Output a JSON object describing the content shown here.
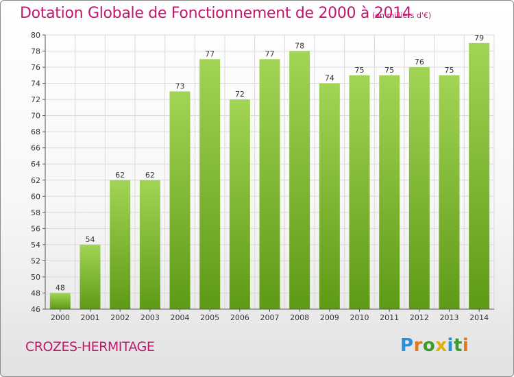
{
  "header": {
    "title": "Dotation Globale de Fonctionnement de 2000 à 2014",
    "unit": "(en milliers d'€)"
  },
  "footer": {
    "commune": "CROZES-HERMITAGE",
    "logo_text": "Proxiti",
    "logo_colors": [
      "#2a8fd6",
      "#e07a1a",
      "#3a9a2a",
      "#e0b00a",
      "#2a8fd6",
      "#3a9a2a",
      "#e07a1a"
    ]
  },
  "chart_data": {
    "type": "bar",
    "title": "Dotation Globale de Fonctionnement de 2000 à 2014",
    "xlabel": "",
    "ylabel": "",
    "categories": [
      "2000",
      "2001",
      "2002",
      "2003",
      "2004",
      "2005",
      "2006",
      "2007",
      "2008",
      "2009",
      "2010",
      "2011",
      "2012",
      "2013",
      "2014"
    ],
    "values": [
      48,
      54,
      62,
      62,
      73,
      77,
      72,
      77,
      78,
      74,
      75,
      75,
      76,
      75,
      79
    ],
    "ylim": [
      46,
      80
    ],
    "yticks": [
      46,
      48,
      50,
      52,
      54,
      56,
      58,
      60,
      62,
      64,
      66,
      68,
      70,
      72,
      74,
      76,
      78,
      80
    ],
    "grid": true,
    "bar_color_top": "#a2d455",
    "bar_color_bottom": "#5e9a16",
    "grid_color": "#d9d9d9"
  }
}
